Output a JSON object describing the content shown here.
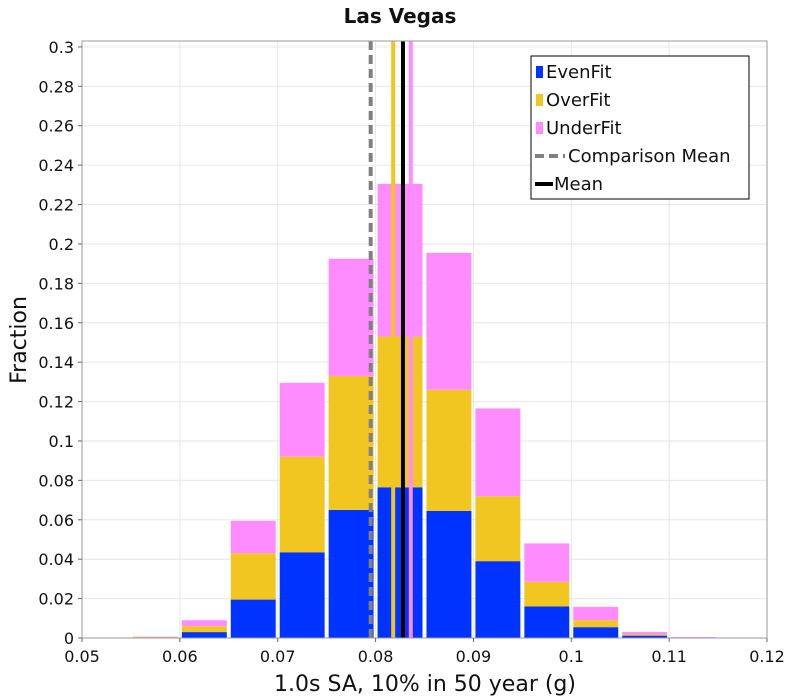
{
  "chart_data": {
    "type": "bar",
    "stacked": true,
    "title": "Las Vegas",
    "xlabel": "1.0s SA, 10% in 50 year (g)",
    "ylabel": "Fraction",
    "xlim": [
      0.05,
      0.12
    ],
    "ylim": [
      0,
      0.303
    ],
    "xticks": [
      0.05,
      0.06,
      0.07,
      0.08,
      0.09,
      0.1,
      0.11,
      0.12
    ],
    "xtick_labels": [
      "0.05",
      "0.06",
      "0.07",
      "0.08",
      "0.09",
      "0.1",
      "0.11",
      "0.12"
    ],
    "yticks": [
      0,
      0.02,
      0.04,
      0.06,
      0.08,
      0.1,
      0.12,
      0.14,
      0.16,
      0.18,
      0.2,
      0.22,
      0.24,
      0.26,
      0.28,
      0.3
    ],
    "ytick_labels": [
      "0",
      "0.02",
      "0.04",
      "0.06",
      "0.08",
      "0.1",
      "0.12",
      "0.14",
      "0.16",
      "0.18",
      "0.2",
      "0.22",
      "0.24",
      "0.26",
      "0.28",
      "0.3"
    ],
    "grid": true,
    "bin_width": 0.005,
    "bin_centers": [
      0.0575,
      0.0625,
      0.0675,
      0.0725,
      0.0775,
      0.0825,
      0.0875,
      0.0925,
      0.0975,
      0.1025,
      0.1075,
      0.1125
    ],
    "series": [
      {
        "name": "EvenFit",
        "color": "#0033ff",
        "values": [
          0.0003,
          0.003,
          0.0195,
          0.0435,
          0.065,
          0.0765,
          0.0645,
          0.039,
          0.016,
          0.0055,
          0.0012,
          0.0002
        ]
      },
      {
        "name": "OverFit",
        "color": "#f2c621",
        "values": [
          0.0002,
          0.003,
          0.0235,
          0.0485,
          0.068,
          0.0765,
          0.0615,
          0.033,
          0.0125,
          0.0035,
          0.0006,
          0.0001
        ]
      },
      {
        "name": "UnderFit",
        "color": "#ff8cff",
        "values": [
          0.0002,
          0.003,
          0.0165,
          0.0375,
          0.0595,
          0.0775,
          0.0695,
          0.0445,
          0.0195,
          0.0068,
          0.0012,
          0.0002
        ]
      }
    ],
    "vlines": [
      {
        "name": "OverFit Mean",
        "x": 0.0818,
        "color": "#f2c621",
        "style": "solid"
      },
      {
        "name": "UnderFit Mean",
        "x": 0.0836,
        "color": "#ff8cff",
        "style": "solid"
      },
      {
        "name": "Comparison Mean",
        "x": 0.0795,
        "color": "#808080",
        "style": "dashed"
      },
      {
        "name": "Mean",
        "x": 0.0828,
        "color": "#000000",
        "style": "solid"
      }
    ],
    "legend": {
      "position": "top-right",
      "entries": [
        {
          "label": "EvenFit",
          "color": "#0033ff",
          "kind": "box"
        },
        {
          "label": "OverFit",
          "color": "#f2c621",
          "kind": "box"
        },
        {
          "label": "UnderFit",
          "color": "#ff8cff",
          "kind": "box"
        },
        {
          "label": "Comparison Mean",
          "color": "#808080",
          "kind": "dash"
        },
        {
          "label": "Mean",
          "color": "#000000",
          "kind": "line"
        }
      ]
    }
  }
}
